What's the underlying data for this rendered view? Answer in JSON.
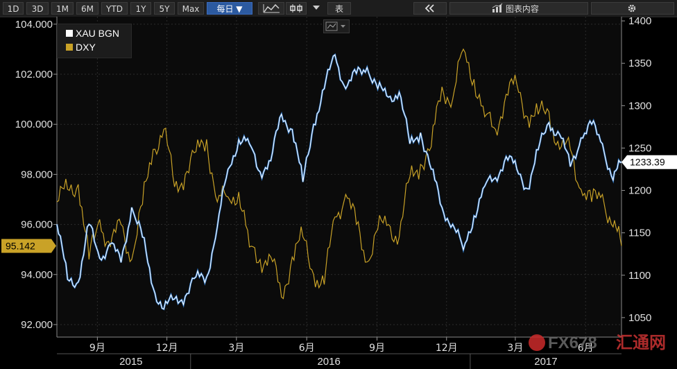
{
  "toolbar": {
    "periods": [
      "1D",
      "3D",
      "1M",
      "6M",
      "YTD",
      "1Y",
      "5Y",
      "Max"
    ],
    "frequency": "每日 ▼",
    "table_label": "表",
    "collapse_glyph": "《",
    "chart_panel_label": "图表内容",
    "icons": [
      "line-chart-icon",
      "candlestick-icon",
      "dropdown-icon",
      "collapse-icon",
      "bar-chart-icon",
      "gear-icon"
    ]
  },
  "watermark": {
    "brand": "FX678",
    "cn": "汇通网"
  },
  "colors": {
    "gold_series": "#ffffff",
    "gold_highlight": "#2f7fd8",
    "dxy_series": "#c9a227",
    "background": "#000000",
    "grid": "#2c2c2c"
  },
  "chart_data": {
    "type": "line",
    "x_ticks": [
      {
        "date": "2015-09-01",
        "label": "9月"
      },
      {
        "date": "2015-12-01",
        "label": "12月"
      },
      {
        "date": "2016-03-01",
        "label": "3月"
      },
      {
        "date": "2016-06-01",
        "label": "6月"
      },
      {
        "date": "2016-09-01",
        "label": "9月"
      },
      {
        "date": "2016-12-01",
        "label": "12月"
      },
      {
        "date": "2017-03-01",
        "label": "3月"
      },
      {
        "date": "2017-06-01",
        "label": "6月"
      }
    ],
    "year_labels": [
      {
        "date": "2015-10-15",
        "label": "2015"
      },
      {
        "date": "2016-06-30",
        "label": "2016"
      },
      {
        "date": "2017-04-10",
        "label": "2017"
      }
    ],
    "x_range": [
      "2015-07-10",
      "2017-07-18"
    ],
    "left_axis": {
      "ticks": [
        "92.000",
        "94.000",
        "96.000",
        "98.000",
        "100.000",
        "102.000",
        "104.000"
      ],
      "range": [
        91.5,
        104.3
      ]
    },
    "right_axis": {
      "ticks": [
        "1050",
        "1100",
        "1150",
        "1200",
        "1250",
        "1300",
        "1350",
        "1400"
      ],
      "range": [
        1027,
        1405
      ]
    },
    "legend_position": "top-left",
    "series": [
      {
        "name": "XAU BGN",
        "axis": "right",
        "last_value_label": "1233.39",
        "points": [
          [
            "2015-07-10",
            1160
          ],
          [
            "2015-07-24",
            1095
          ],
          [
            "2015-08-07",
            1092
          ],
          [
            "2015-08-21",
            1160
          ],
          [
            "2015-09-04",
            1120
          ],
          [
            "2015-09-18",
            1137
          ],
          [
            "2015-10-02",
            1115
          ],
          [
            "2015-10-16",
            1180
          ],
          [
            "2015-10-30",
            1145
          ],
          [
            "2015-11-13",
            1085
          ],
          [
            "2015-11-27",
            1060
          ],
          [
            "2015-12-11",
            1072
          ],
          [
            "2015-12-25",
            1075
          ],
          [
            "2016-01-08",
            1098
          ],
          [
            "2016-01-22",
            1098
          ],
          [
            "2016-02-05",
            1157
          ],
          [
            "2016-02-19",
            1225
          ],
          [
            "2016-03-04",
            1260
          ],
          [
            "2016-03-18",
            1255
          ],
          [
            "2016-04-01",
            1222
          ],
          [
            "2016-04-15",
            1235
          ],
          [
            "2016-04-29",
            1290
          ],
          [
            "2016-05-13",
            1272
          ],
          [
            "2016-05-27",
            1210
          ],
          [
            "2016-06-10",
            1278
          ],
          [
            "2016-06-24",
            1320
          ],
          [
            "2016-07-08",
            1360
          ],
          [
            "2016-07-22",
            1320
          ],
          [
            "2016-08-05",
            1338
          ],
          [
            "2016-08-19",
            1345
          ],
          [
            "2016-09-02",
            1320
          ],
          [
            "2016-09-16",
            1310
          ],
          [
            "2016-09-30",
            1316
          ],
          [
            "2016-10-14",
            1255
          ],
          [
            "2016-10-28",
            1268
          ],
          [
            "2016-11-11",
            1225
          ],
          [
            "2016-11-25",
            1180
          ],
          [
            "2016-12-09",
            1160
          ],
          [
            "2016-12-23",
            1130
          ],
          [
            "2017-01-06",
            1170
          ],
          [
            "2017-01-20",
            1205
          ],
          [
            "2017-02-03",
            1215
          ],
          [
            "2017-02-17",
            1240
          ],
          [
            "2017-03-03",
            1225
          ],
          [
            "2017-03-17",
            1202
          ],
          [
            "2017-03-31",
            1248
          ],
          [
            "2017-04-14",
            1280
          ],
          [
            "2017-04-28",
            1266
          ],
          [
            "2017-05-12",
            1228
          ],
          [
            "2017-05-26",
            1262
          ],
          [
            "2017-06-09",
            1278
          ],
          [
            "2017-06-23",
            1255
          ],
          [
            "2017-07-07",
            1212
          ],
          [
            "2017-07-18",
            1233.39
          ]
        ]
      },
      {
        "name": "DXY",
        "axis": "left",
        "last_value_label": "95.142",
        "points": [
          [
            "2015-07-10",
            96.9
          ],
          [
            "2015-07-24",
            97.4
          ],
          [
            "2015-08-07",
            97.6
          ],
          [
            "2015-08-21",
            94.6
          ],
          [
            "2015-09-04",
            96.2
          ],
          [
            "2015-09-18",
            95.1
          ],
          [
            "2015-10-02",
            96.0
          ],
          [
            "2015-10-16",
            94.6
          ],
          [
            "2015-10-30",
            96.8
          ],
          [
            "2015-11-13",
            99.0
          ],
          [
            "2015-11-27",
            99.8
          ],
          [
            "2015-12-11",
            97.5
          ],
          [
            "2015-12-25",
            98.0
          ],
          [
            "2016-01-08",
            98.9
          ],
          [
            "2016-01-22",
            99.4
          ],
          [
            "2016-02-05",
            96.9
          ],
          [
            "2016-02-19",
            97.1
          ],
          [
            "2016-03-04",
            97.3
          ],
          [
            "2016-03-18",
            95.1
          ],
          [
            "2016-04-01",
            94.6
          ],
          [
            "2016-04-15",
            94.7
          ],
          [
            "2016-04-29",
            93.1
          ],
          [
            "2016-05-13",
            94.7
          ],
          [
            "2016-05-27",
            95.5
          ],
          [
            "2016-06-10",
            94.0
          ],
          [
            "2016-06-24",
            93.6
          ],
          [
            "2016-07-08",
            96.3
          ],
          [
            "2016-07-22",
            97.2
          ],
          [
            "2016-08-05",
            96.0
          ],
          [
            "2016-08-19",
            94.5
          ],
          [
            "2016-09-02",
            95.8
          ],
          [
            "2016-09-16",
            96.0
          ],
          [
            "2016-09-30",
            95.5
          ],
          [
            "2016-10-14",
            97.9
          ],
          [
            "2016-10-28",
            98.4
          ],
          [
            "2016-11-11",
            99.1
          ],
          [
            "2016-11-25",
            101.5
          ],
          [
            "2016-12-09",
            101.0
          ],
          [
            "2016-12-23",
            103.0
          ],
          [
            "2017-01-06",
            101.8
          ],
          [
            "2017-01-20",
            100.3
          ],
          [
            "2017-02-03",
            99.8
          ],
          [
            "2017-02-17",
            101.2
          ],
          [
            "2017-03-03",
            101.6
          ],
          [
            "2017-03-17",
            100.3
          ],
          [
            "2017-03-31",
            100.4
          ],
          [
            "2017-04-14",
            100.5
          ],
          [
            "2017-04-28",
            99.0
          ],
          [
            "2017-05-12",
            99.0
          ],
          [
            "2017-05-26",
            97.4
          ],
          [
            "2017-06-09",
            96.9
          ],
          [
            "2017-06-23",
            97.2
          ],
          [
            "2017-07-07",
            95.9
          ],
          [
            "2017-07-18",
            95.142
          ]
        ]
      }
    ]
  }
}
